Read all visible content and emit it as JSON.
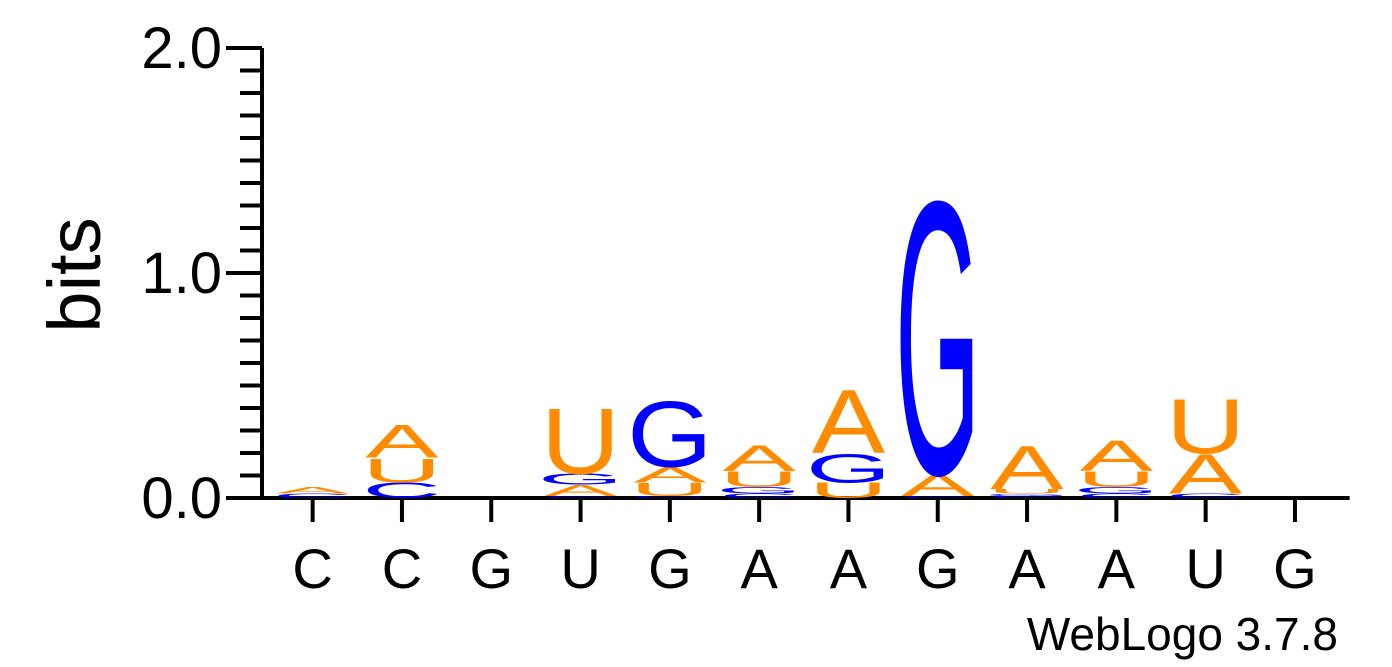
{
  "chart_data": {
    "type": "sequence-logo",
    "ylabel": "bits",
    "ylim": [
      0,
      2.0
    ],
    "ytick_labels": [
      "0.0",
      "1.0",
      "2.0"
    ],
    "yticks": [
      0,
      1.0,
      2.0
    ],
    "y_minor_step": 0.2,
    "xtick_labels": [
      "C",
      "C",
      "G",
      "U",
      "G",
      "A",
      "A",
      "G",
      "A",
      "A",
      "U",
      "G"
    ],
    "colors": {
      "A": "#ff8c00",
      "U": "#ff8c00",
      "G": "#0000ff",
      "C": "#0000ff"
    },
    "positions": [
      {
        "stack": [
          {
            "letter": "C",
            "bits": 0.02
          },
          {
            "letter": "A",
            "bits": 0.03
          }
        ]
      },
      {
        "stack": [
          {
            "letter": "C",
            "bits": 0.07
          },
          {
            "letter": "U",
            "bits": 0.11
          },
          {
            "letter": "A",
            "bits": 0.15
          }
        ]
      },
      {
        "stack": []
      },
      {
        "stack": [
          {
            "letter": "C",
            "bits": 0.01
          },
          {
            "letter": "A",
            "bits": 0.05
          },
          {
            "letter": "G",
            "bits": 0.05
          },
          {
            "letter": "U",
            "bits": 0.3
          }
        ]
      },
      {
        "stack": [
          {
            "letter": "C",
            "bits": 0.01
          },
          {
            "letter": "U",
            "bits": 0.06
          },
          {
            "letter": "A",
            "bits": 0.07
          },
          {
            "letter": "G",
            "bits": 0.3
          }
        ]
      },
      {
        "stack": [
          {
            "letter": "C",
            "bits": 0.02
          },
          {
            "letter": "G",
            "bits": 0.03
          },
          {
            "letter": "U",
            "bits": 0.07
          },
          {
            "letter": "A",
            "bits": 0.12
          }
        ]
      },
      {
        "stack": [
          {
            "letter": "U",
            "bits": 0.07
          },
          {
            "letter": "G",
            "bits": 0.13
          },
          {
            "letter": "A",
            "bits": 0.29
          }
        ]
      },
      {
        "stack": [
          {
            "letter": "C",
            "bits": 0.01
          },
          {
            "letter": "A",
            "bits": 0.1
          },
          {
            "letter": "G",
            "bits": 1.25
          }
        ]
      },
      {
        "stack": [
          {
            "letter": "C",
            "bits": 0.01
          },
          {
            "letter": "G",
            "bits": 0.01
          },
          {
            "letter": "U",
            "bits": 0.02
          },
          {
            "letter": "A",
            "bits": 0.2
          }
        ]
      },
      {
        "stack": [
          {
            "letter": "C",
            "bits": 0.02
          },
          {
            "letter": "G",
            "bits": 0.03
          },
          {
            "letter": "U",
            "bits": 0.07
          },
          {
            "letter": "A",
            "bits": 0.14
          }
        ]
      },
      {
        "stack": [
          {
            "letter": "C",
            "bits": 0.02
          },
          {
            "letter": "A",
            "bits": 0.18
          },
          {
            "letter": "U",
            "bits": 0.25
          }
        ]
      },
      {
        "stack": []
      }
    ]
  },
  "footer": {
    "credit": "WebLogo 3.7.8"
  }
}
